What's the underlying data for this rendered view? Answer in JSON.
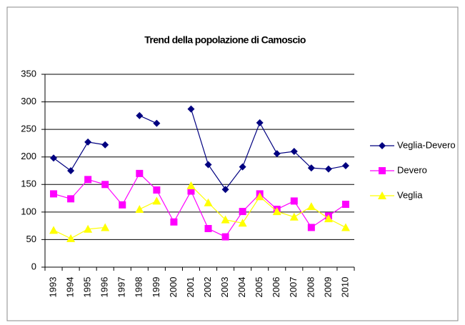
{
  "chart_data": {
    "type": "line",
    "title": "Trend della popolazione di Camoscio",
    "categories": [
      "1993",
      "1994",
      "1995",
      "1996",
      "1997",
      "1998",
      "1999",
      "2000",
      "2001",
      "2002",
      "2003",
      "2004",
      "2005",
      "2006",
      "2007",
      "2008",
      "2009",
      "2010"
    ],
    "series": [
      {
        "name": "Veglia-Devero",
        "color": "#000080",
        "marker": "diamond",
        "values": [
          198,
          175,
          227,
          222,
          null,
          275,
          261,
          null,
          287,
          186,
          141,
          182,
          262,
          206,
          210,
          180,
          178,
          184
        ]
      },
      {
        "name": "Devero",
        "color": "#ff00ff",
        "marker": "square",
        "values": [
          133,
          124,
          159,
          150,
          113,
          170,
          140,
          82,
          138,
          70,
          55,
          101,
          133,
          105,
          120,
          72,
          93,
          114
        ]
      },
      {
        "name": "Veglia",
        "color": "#ffff00",
        "marker": "triangle",
        "values": [
          67,
          52,
          69,
          72,
          null,
          105,
          120,
          null,
          148,
          117,
          86,
          80,
          128,
          101,
          91,
          110,
          88,
          72
        ]
      }
    ],
    "ylim": [
      0,
      350
    ],
    "yticks": [
      0,
      50,
      100,
      150,
      200,
      250,
      300,
      350
    ],
    "grid": true,
    "legend": "right"
  }
}
